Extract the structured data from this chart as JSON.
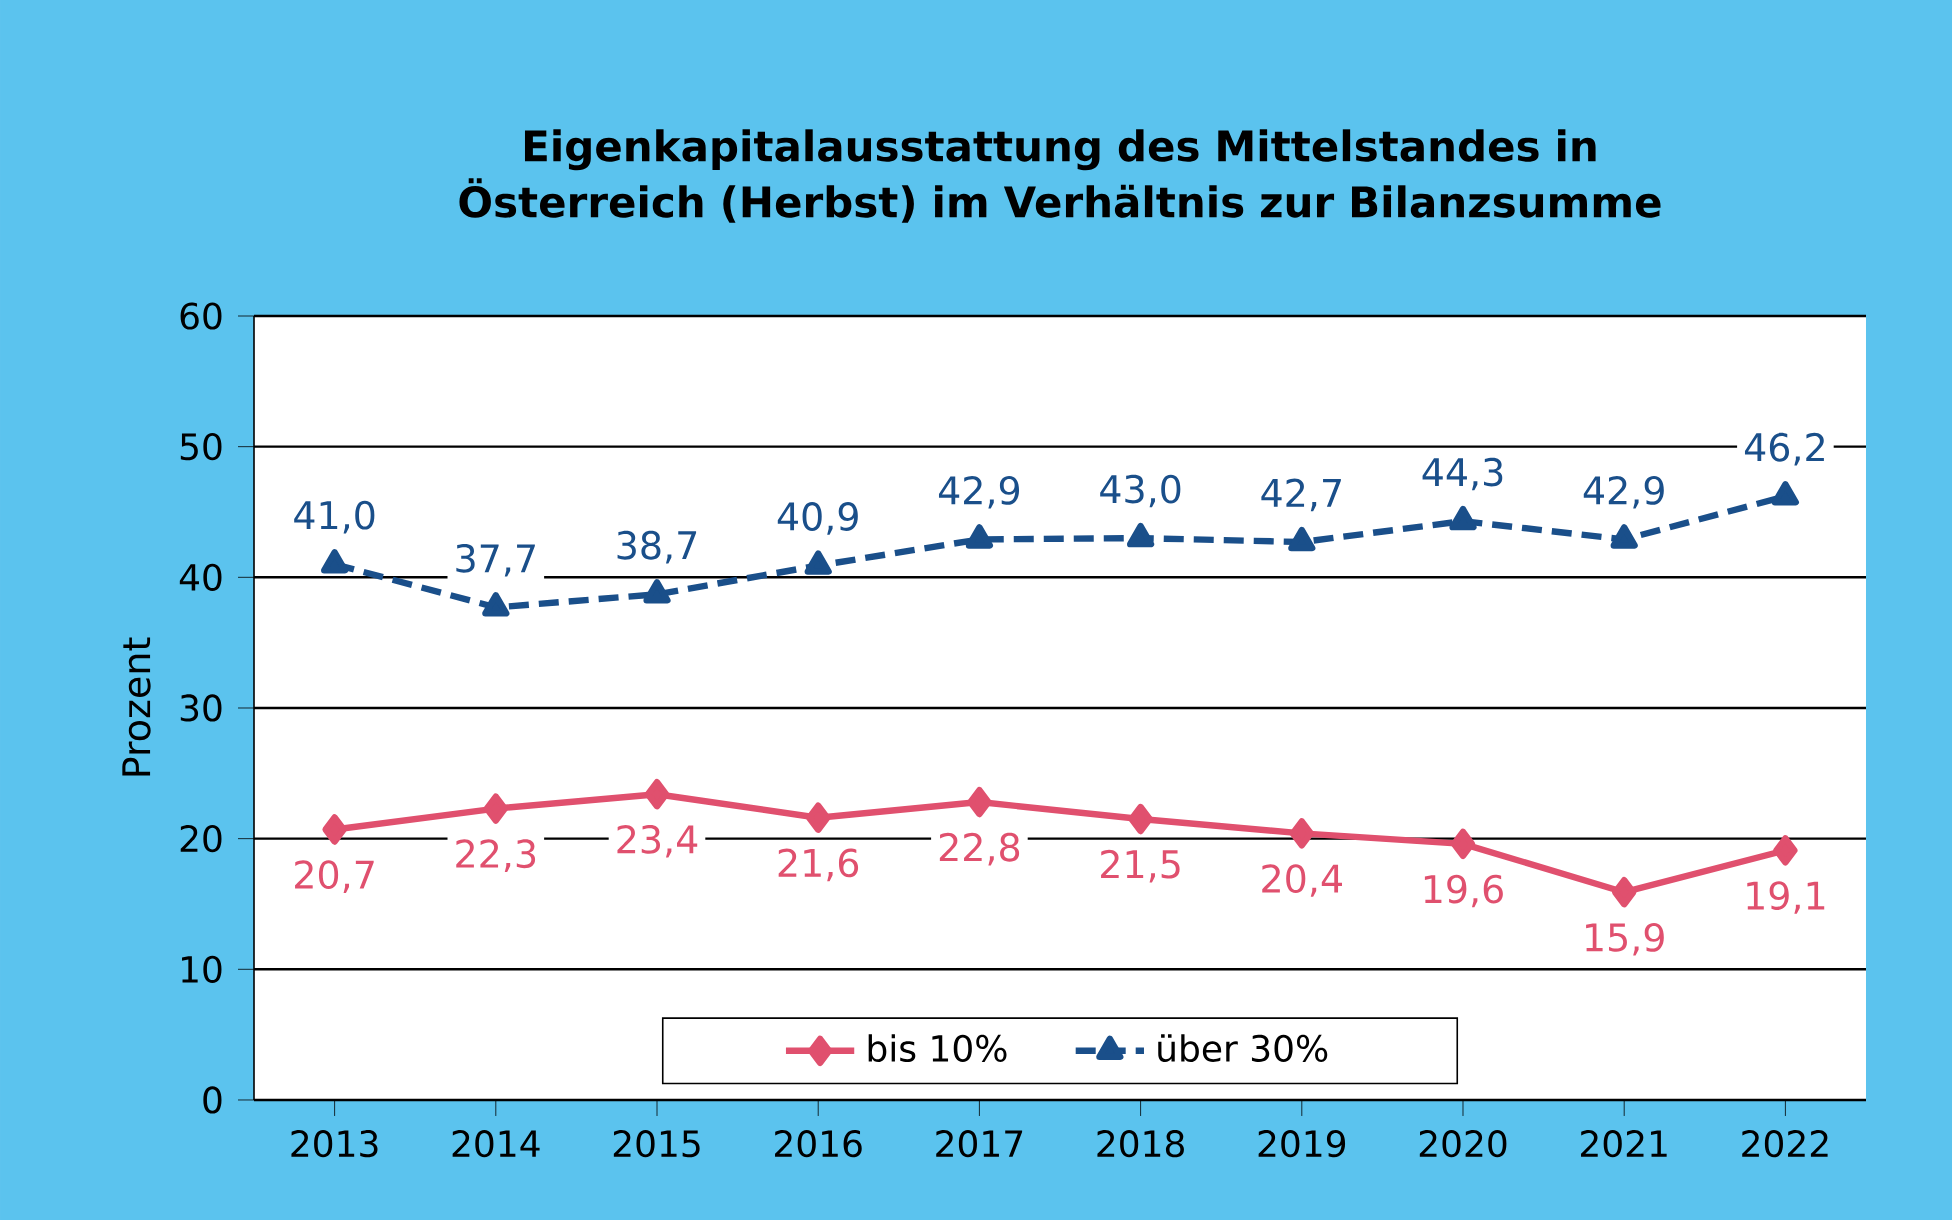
{
  "chart_data": {
    "type": "line",
    "title": "Eigenkapitalausstattung des Mittelstandes in Österreich (Herbst) im Verhältnis zur Bilanzsumme",
    "ylabel": "Prozent",
    "categories": [
      "2013",
      "2014",
      "2015",
      "2016",
      "2017",
      "2018",
      "2019",
      "2020",
      "2021",
      "2022"
    ],
    "series": [
      {
        "name": "bis 10%",
        "color": "#e0506e",
        "marker": "diamond",
        "line_style": "solid",
        "values": [
          20.7,
          22.3,
          23.4,
          21.6,
          22.8,
          21.5,
          20.4,
          19.6,
          15.9,
          19.1
        ],
        "value_labels": [
          "20,7",
          "22,3",
          "23,4",
          "21,6",
          "22,8",
          "21,5",
          "20,4",
          "19,6",
          "15,9",
          "19,1"
        ]
      },
      {
        "name": "über 30%",
        "color": "#1a4f8a",
        "marker": "triangle",
        "line_style": "dashed",
        "values": [
          41.0,
          37.7,
          38.7,
          40.9,
          42.9,
          43.0,
          42.7,
          44.3,
          42.9,
          46.2
        ],
        "value_labels": [
          "41,0",
          "37,7",
          "38,7",
          "40,9",
          "42,9",
          "43,0",
          "42,7",
          "44,3",
          "42,9",
          "46,2"
        ]
      }
    ],
    "ylim": [
      0,
      60
    ],
    "yticks": [
      0,
      10,
      20,
      30,
      40,
      50,
      60
    ],
    "grid": "y",
    "legend": "bottom"
  }
}
